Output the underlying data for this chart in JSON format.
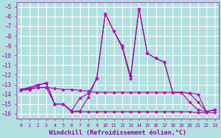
{
  "bg_color": "#b2e0e0",
  "grid_color": "#c8e8e8",
  "line_color": "#990099",
  "marker_color": "#cc00cc",
  "xlabel": "Windchill (Refroidissement éolien,°C)",
  "xlabel_fontsize": 6.5,
  "ylabel_fontsize": 6.5,
  "tick_fontsize": 5.5,
  "ylim": [
    -16.5,
    -4.5
  ],
  "xlim": [
    -0.5,
    23.5
  ],
  "yticks": [
    -16,
    -15,
    -14,
    -13,
    -12,
    -11,
    -10,
    -9,
    -8,
    -7,
    -6,
    -5
  ],
  "xticks": [
    0,
    1,
    2,
    3,
    4,
    5,
    6,
    7,
    8,
    9,
    10,
    11,
    12,
    13,
    14,
    15,
    16,
    17,
    18,
    19,
    20,
    21,
    22,
    23
  ],
  "series": [
    {
      "x": [
        0,
        1,
        2,
        3,
        4,
        5,
        6,
        7,
        8,
        9,
        10,
        11,
        12,
        13,
        14,
        15,
        16,
        17,
        18,
        19,
        20,
        21,
        22,
        23
      ],
      "y": [
        -13.5,
        -13.4,
        -13.1,
        -12.8,
        -15.0,
        -15.0,
        -15.8,
        -15.7,
        -14.3,
        -12.3,
        -5.7,
        -7.5,
        -9.0,
        -12.1,
        -5.2,
        -9.8,
        -10.3,
        -10.7,
        -13.8,
        -13.8,
        -14.8,
        -15.6,
        -15.8,
        -15.6
      ]
    },
    {
      "x": [
        0,
        1,
        2,
        3,
        4,
        5,
        6,
        7,
        8,
        9,
        10,
        11,
        12,
        13,
        14,
        15,
        16,
        17,
        18,
        19,
        20,
        21,
        22,
        23
      ],
      "y": [
        -13.5,
        -13.3,
        -13.0,
        -12.9,
        -15.0,
        -15.0,
        -15.7,
        -14.4,
        -13.9,
        -12.4,
        -5.7,
        -7.5,
        -9.2,
        -12.4,
        -5.2,
        -9.8,
        -10.3,
        -10.7,
        -13.8,
        -13.8,
        -13.9,
        -14.8,
        -15.8,
        -15.6
      ]
    },
    {
      "x": [
        0,
        1,
        2,
        3,
        4,
        5,
        6,
        7,
        8,
        9,
        10,
        11,
        12,
        13,
        14,
        15,
        16,
        17,
        18,
        19,
        20,
        21,
        22,
        23
      ],
      "y": [
        -13.5,
        -13.5,
        -13.3,
        -13.3,
        -13.4,
        -13.5,
        -13.5,
        -13.6,
        -13.7,
        -13.8,
        -13.8,
        -13.8,
        -13.8,
        -13.8,
        -13.8,
        -13.8,
        -13.8,
        -13.8,
        -13.8,
        -13.8,
        -13.9,
        -14.0,
        -15.8,
        -15.6
      ]
    },
    {
      "x": [
        0,
        1,
        2,
        3,
        4,
        5,
        6,
        7,
        8,
        9,
        10,
        11,
        12,
        13,
        14,
        15,
        16,
        17,
        18,
        19,
        20,
        21,
        22,
        23
      ],
      "y": [
        -13.6,
        -13.5,
        -13.3,
        -13.3,
        -15.0,
        -15.0,
        -15.8,
        -15.8,
        -15.8,
        -15.8,
        -15.8,
        -15.8,
        -15.8,
        -15.8,
        -15.8,
        -15.8,
        -15.8,
        -15.8,
        -15.8,
        -15.8,
        -15.8,
        -15.9,
        -15.9,
        -15.9
      ]
    }
  ]
}
